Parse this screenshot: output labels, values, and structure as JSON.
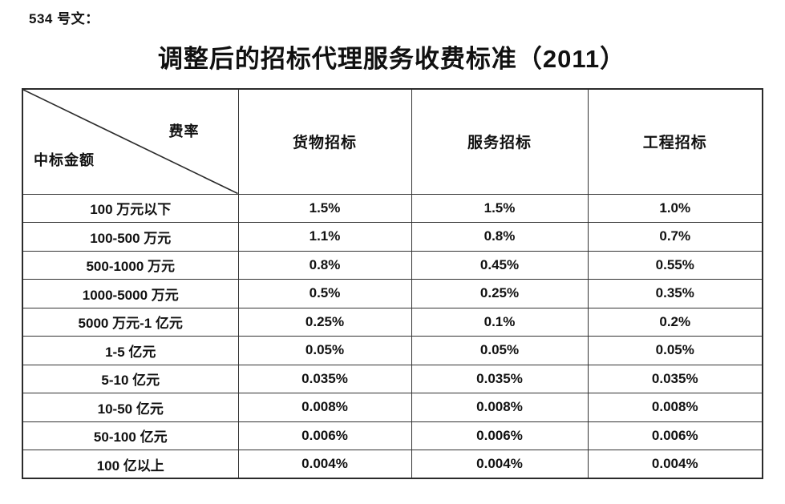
{
  "page": {
    "doc_number": "534 号文：",
    "title": "调整后的招标代理服务收费标准（2011）"
  },
  "table": {
    "corner": {
      "top_right_label": "费率",
      "bottom_left_label": "中标金额"
    },
    "column_headers": [
      "货物招标",
      "服务招标",
      "工程招标"
    ],
    "rows": [
      {
        "label": "100 万元以下",
        "values": [
          "1.5%",
          "1.5%",
          "1.0%"
        ]
      },
      {
        "label": "100-500 万元",
        "values": [
          "1.1%",
          "0.8%",
          "0.7%"
        ]
      },
      {
        "label": "500-1000 万元",
        "values": [
          "0.8%",
          "0.45%",
          "0.55%"
        ]
      },
      {
        "label": "1000-5000 万元",
        "values": [
          "0.5%",
          "0.25%",
          "0.35%"
        ]
      },
      {
        "label": "5000 万元-1 亿元",
        "values": [
          "0.25%",
          "0.1%",
          "0.2%"
        ]
      },
      {
        "label": "1-5 亿元",
        "values": [
          "0.05%",
          "0.05%",
          "0.05%"
        ]
      },
      {
        "label": "5-10 亿元",
        "values": [
          "0.035%",
          "0.035%",
          "0.035%"
        ]
      },
      {
        "label": "10-50 亿元",
        "values": [
          "0.008%",
          "0.008%",
          "0.008%"
        ]
      },
      {
        "label": "50-100 亿元",
        "values": [
          "0.006%",
          "0.006%",
          "0.006%"
        ]
      },
      {
        "label": "100 亿以上",
        "values": [
          "0.004%",
          "0.004%",
          "0.004%"
        ]
      }
    ]
  }
}
